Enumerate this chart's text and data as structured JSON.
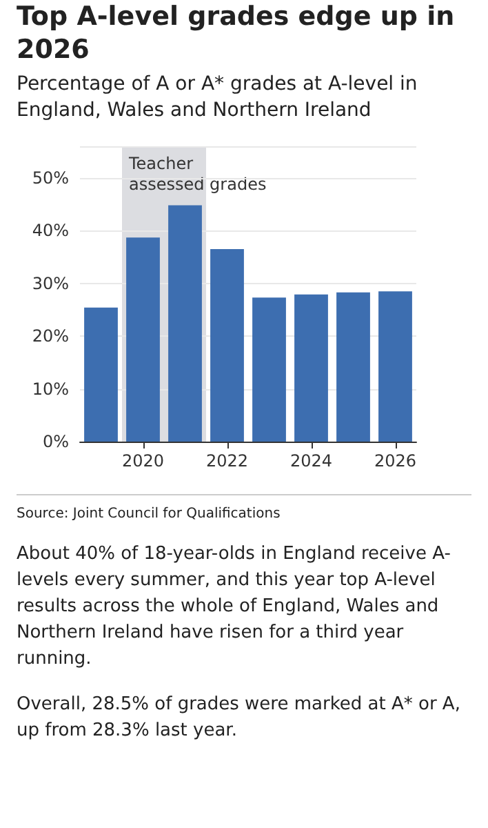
{
  "chart_data": {
    "type": "bar",
    "title": "Top A-level grades edge up in 2026",
    "subtitle": "Percentage of A or A* grades at A-level in England, Wales and Northern Ireland",
    "x": [
      2019,
      2020,
      2021,
      2022,
      2023,
      2024,
      2025,
      2026
    ],
    "values": [
      25.4,
      38.7,
      44.8,
      36.5,
      27.3,
      27.9,
      28.3,
      28.5
    ],
    "color": "#3d6eb0",
    "xlim": [
      2018.5,
      2026.5
    ],
    "xticks": [
      2020,
      2022,
      2024,
      2026
    ],
    "ylim": [
      0,
      56
    ],
    "yticks": [
      {
        "value": 0,
        "label": "0%"
      },
      {
        "value": 10,
        "label": "10%"
      },
      {
        "value": 20,
        "label": "20%"
      },
      {
        "value": 30,
        "label": "30%"
      },
      {
        "value": 40,
        "label": "40%"
      },
      {
        "value": 50,
        "label": "50%"
      }
    ],
    "bands": [
      {
        "axis": "x",
        "from": 2019.5,
        "to": 2021.5,
        "label": "Teacher\nassessed grades",
        "color": "#dcdde1"
      }
    ],
    "grid": "y",
    "annotations": [
      "Source: Joint Council for Qualifications",
      "About 40% of 18-year-olds in England receive A-levels every summer, and this year top A-level results across the whole of England, Wales and Northern Ireland have risen for a third year running.",
      "Overall, 28.5% of grades were marked at A* or A, up from 28.3% last year."
    ]
  }
}
